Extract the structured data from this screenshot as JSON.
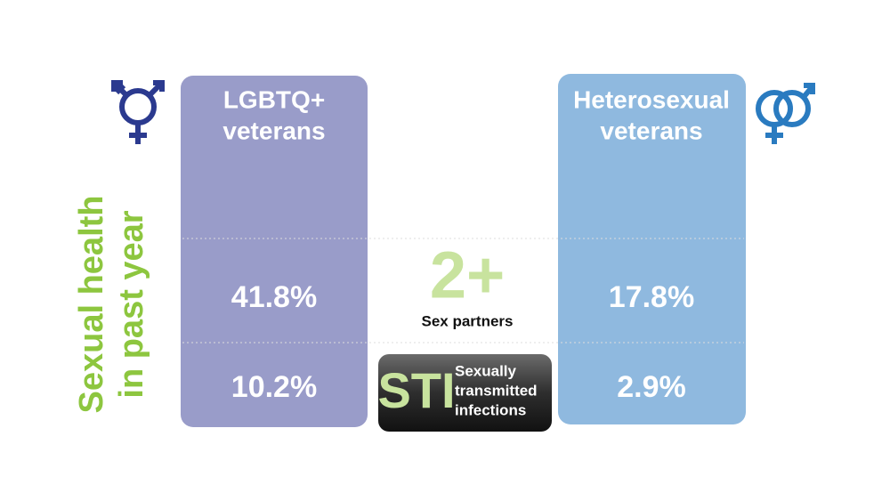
{
  "side_title": [
    "Sexual health",
    "in past year"
  ],
  "groups": [
    {
      "label": [
        "LGBTQ+",
        "veterans"
      ]
    },
    {
      "label": [
        "Heterosexual",
        "veterans"
      ]
    }
  ],
  "rows": [
    {
      "badge": "2+",
      "label": [
        "Sex partners"
      ],
      "values": [
        "41.8%",
        "17.8%"
      ]
    },
    {
      "badge": "STI",
      "label": [
        "Sexually",
        "transmitted",
        "infections"
      ],
      "values": [
        "10.2%",
        "2.9%"
      ]
    }
  ]
}
